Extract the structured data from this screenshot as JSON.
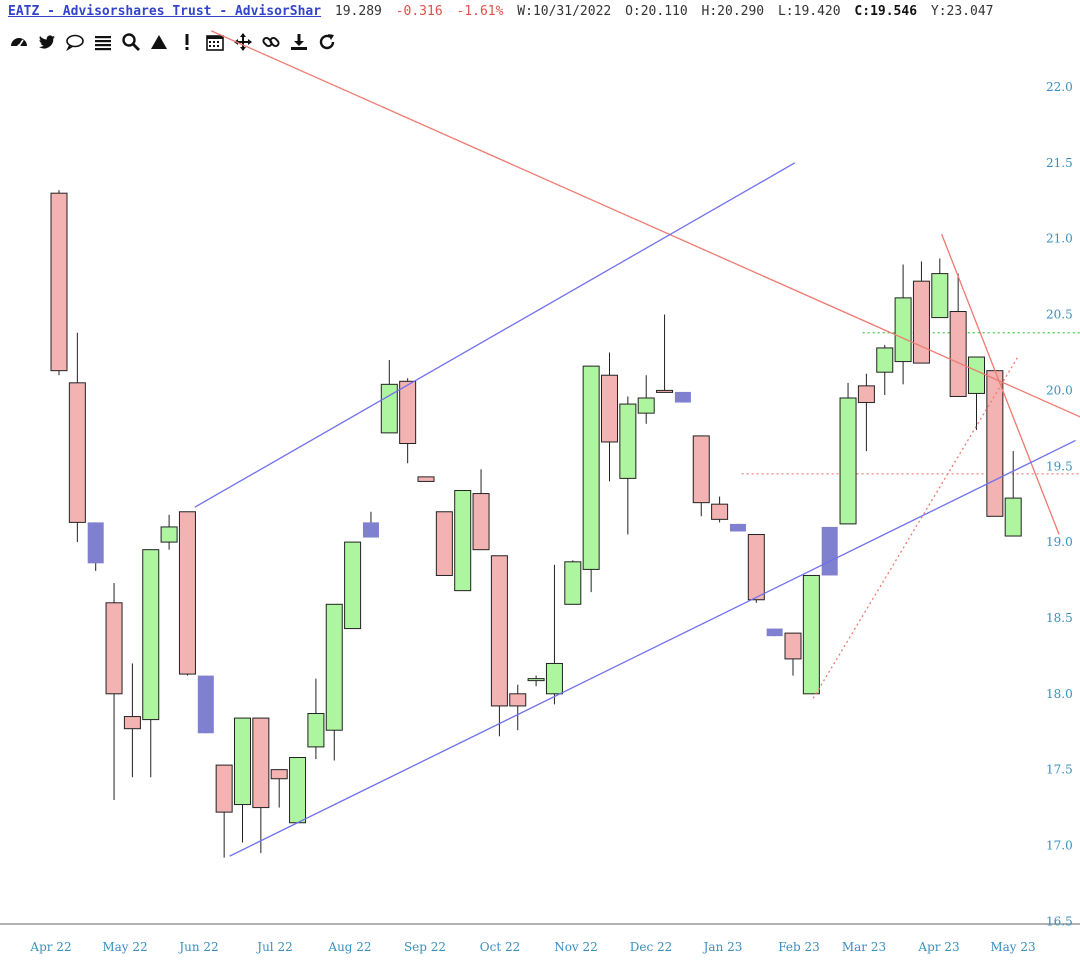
{
  "header": {
    "title": "EATZ - Advisorshares Trust - AdvisorShar",
    "last": "19.289",
    "change": "-0.316",
    "change_pct": "-1.61%",
    "w_label": "W:",
    "w_date": "10/31/2022",
    "o_label": "O:",
    "o_value": "20.110",
    "h_label": "H:",
    "h_value": "20.290",
    "l_label": "L:",
    "l_value": "19.420",
    "c_label": "C:",
    "c_value": "19.546",
    "y_label": "Y:",
    "y_value": "23.047"
  },
  "toolbar": {
    "icons": [
      "dashboard-icon",
      "twitter-icon",
      "comment-icon",
      "list-icon",
      "search-icon",
      "triangle-icon",
      "alert-icon",
      "calendar-icon",
      "move-icon",
      "link-icon",
      "download-icon",
      "refresh-icon"
    ]
  },
  "colors": {
    "up": "#aef5a0",
    "down": "#f3b3b3",
    "neutral": "#8080d0",
    "trend_red": "#ee7a70",
    "trend_blue": "#7070ee",
    "level_green": "#44cc44",
    "axis_text": "#3a8fbf"
  },
  "chart_data": {
    "type": "candlestick",
    "interval": "weekly",
    "ylim": [
      16.3,
      22.2
    ],
    "y_ticks": [
      16.5,
      17.0,
      17.5,
      18.0,
      18.5,
      19.0,
      19.5,
      20.0,
      20.5,
      21.0,
      21.5,
      22.0
    ],
    "x_labels": [
      "Apr 22",
      "May 22",
      "Jun 22",
      "Jul 22",
      "Aug 22",
      "Sep 22",
      "Oct 22",
      "Nov 22",
      "Dec 22",
      "Jan 23",
      "Feb 23",
      "Mar 23",
      "Apr 23",
      "May 23"
    ],
    "candles": [
      {
        "o": 21.3,
        "h": 21.32,
        "l": 20.1,
        "c": 20.13,
        "t": "down"
      },
      {
        "o": 20.05,
        "h": 20.38,
        "l": 19.0,
        "c": 19.13,
        "t": "down"
      },
      {
        "o": 19.13,
        "h": 19.13,
        "l": 18.81,
        "c": 18.86,
        "t": "neutral"
      },
      {
        "o": 18.6,
        "h": 18.73,
        "l": 17.3,
        "c": 18.0,
        "t": "down"
      },
      {
        "o": 17.85,
        "h": 18.2,
        "l": 17.45,
        "c": 17.77,
        "t": "down"
      },
      {
        "o": 17.83,
        "h": 18.95,
        "l": 17.45,
        "c": 18.95,
        "t": "up"
      },
      {
        "o": 19.0,
        "h": 19.18,
        "l": 18.95,
        "c": 19.1,
        "t": "up"
      },
      {
        "o": 19.2,
        "h": 19.2,
        "l": 18.12,
        "c": 18.13,
        "t": "down"
      },
      {
        "o": 18.12,
        "h": 18.12,
        "l": 17.74,
        "c": 17.74,
        "t": "neutral"
      },
      {
        "o": 17.53,
        "h": 17.53,
        "l": 16.92,
        "c": 17.22,
        "t": "down"
      },
      {
        "o": 17.27,
        "h": 17.84,
        "l": 17.02,
        "c": 17.84,
        "t": "up"
      },
      {
        "o": 17.84,
        "h": 17.84,
        "l": 16.95,
        "c": 17.25,
        "t": "down"
      },
      {
        "o": 17.5,
        "h": 17.5,
        "l": 17.25,
        "c": 17.44,
        "t": "down"
      },
      {
        "o": 17.15,
        "h": 17.58,
        "l": 17.15,
        "c": 17.58,
        "t": "up"
      },
      {
        "o": 17.65,
        "h": 18.1,
        "l": 17.57,
        "c": 17.87,
        "t": "up"
      },
      {
        "o": 17.76,
        "h": 18.59,
        "l": 17.56,
        "c": 18.59,
        "t": "up"
      },
      {
        "o": 18.43,
        "h": 19.0,
        "l": 18.43,
        "c": 19.0,
        "t": "up"
      },
      {
        "o": 19.13,
        "h": 19.2,
        "l": 19.03,
        "c": 19.03,
        "t": "neutral"
      },
      {
        "o": 19.72,
        "h": 20.2,
        "l": 19.72,
        "c": 20.04,
        "t": "up"
      },
      {
        "o": 20.06,
        "h": 20.08,
        "l": 19.52,
        "c": 19.65,
        "t": "down"
      },
      {
        "o": 19.43,
        "h": 19.43,
        "l": 19.41,
        "c": 19.4,
        "t": "down"
      },
      {
        "o": 19.2,
        "h": 19.2,
        "l": 18.78,
        "c": 18.78,
        "t": "down"
      },
      {
        "o": 18.68,
        "h": 19.34,
        "l": 18.68,
        "c": 19.34,
        "t": "up"
      },
      {
        "o": 19.32,
        "h": 19.48,
        "l": 18.95,
        "c": 18.95,
        "t": "down"
      },
      {
        "o": 18.91,
        "h": 18.91,
        "l": 17.72,
        "c": 17.92,
        "t": "down"
      },
      {
        "o": 17.92,
        "h": 18.06,
        "l": 17.76,
        "c": 18.0,
        "t": "down"
      },
      {
        "o": 18.1,
        "h": 18.12,
        "l": 18.05,
        "c": 18.1,
        "t": "up"
      },
      {
        "o": 18.0,
        "h": 18.85,
        "l": 17.93,
        "c": 18.2,
        "t": "up"
      },
      {
        "o": 18.59,
        "h": 18.88,
        "l": 18.59,
        "c": 18.87,
        "t": "up"
      },
      {
        "o": 18.82,
        "h": 20.16,
        "l": 18.67,
        "c": 20.16,
        "t": "up"
      },
      {
        "o": 20.1,
        "h": 20.25,
        "l": 19.4,
        "c": 19.66,
        "t": "down"
      },
      {
        "o": 19.42,
        "h": 19.96,
        "l": 19.05,
        "c": 19.91,
        "t": "up"
      },
      {
        "o": 19.85,
        "h": 20.1,
        "l": 19.78,
        "c": 19.95,
        "t": "up"
      },
      {
        "o": 20.0,
        "h": 20.5,
        "l": 20.01,
        "c": 20.0,
        "t": "down"
      },
      {
        "o": 19.99,
        "h": 19.94,
        "l": 19.93,
        "c": 19.92,
        "t": "neutral"
      },
      {
        "o": 19.7,
        "h": 19.7,
        "l": 19.17,
        "c": 19.26,
        "t": "down"
      },
      {
        "o": 19.25,
        "h": 19.3,
        "l": 19.13,
        "c": 19.15,
        "t": "down"
      },
      {
        "o": 19.12,
        "h": 19.12,
        "l": 19.07,
        "c": 19.07,
        "t": "neutral"
      },
      {
        "o": 19.05,
        "h": 19.05,
        "l": 18.6,
        "c": 18.62,
        "t": "down"
      },
      {
        "o": 18.43,
        "h": 18.43,
        "l": 18.38,
        "c": 18.38,
        "t": "neutral"
      },
      {
        "o": 18.4,
        "h": 18.4,
        "l": 18.12,
        "c": 18.23,
        "t": "down"
      },
      {
        "o": 18.0,
        "h": 18.78,
        "l": 18.0,
        "c": 18.78,
        "t": "up"
      },
      {
        "o": 19.1,
        "h": 19.1,
        "l": 18.78,
        "c": 18.78,
        "t": "neutral"
      },
      {
        "o": 19.12,
        "h": 20.05,
        "l": 19.12,
        "c": 19.95,
        "t": "up"
      },
      {
        "o": 20.03,
        "h": 20.11,
        "l": 19.6,
        "c": 19.92,
        "t": "down"
      },
      {
        "o": 20.12,
        "h": 20.3,
        "l": 19.97,
        "c": 20.28,
        "t": "up"
      },
      {
        "o": 20.19,
        "h": 20.83,
        "l": 20.04,
        "c": 20.61,
        "t": "up"
      },
      {
        "o": 20.72,
        "h": 20.85,
        "l": 20.22,
        "c": 20.18,
        "t": "down"
      },
      {
        "o": 20.48,
        "h": 20.87,
        "l": 20.48,
        "c": 20.77,
        "t": "up"
      },
      {
        "o": 20.52,
        "h": 20.77,
        "l": 20.0,
        "c": 19.96,
        "t": "down"
      },
      {
        "o": 19.98,
        "h": 20.22,
        "l": 19.74,
        "c": 20.22,
        "t": "up"
      },
      {
        "o": 20.13,
        "h": 20.13,
        "l": 19.17,
        "c": 19.17,
        "t": "down"
      },
      {
        "o": 19.04,
        "h": 19.6,
        "l": 19.04,
        "c": 19.29,
        "t": "up"
      }
    ],
    "trendlines": [
      {
        "name": "red-downtrend",
        "style": "solid",
        "color": "red",
        "from": {
          "week": 8.3,
          "price": 22.37
        },
        "to": {
          "week": 64.5,
          "price": 19.35
        }
      },
      {
        "name": "red-short-downtrend",
        "style": "solid",
        "color": "red",
        "from": {
          "week": 48.1,
          "price": 21.03
        },
        "to": {
          "week": 54.5,
          "price": 19.05
        }
      },
      {
        "name": "blue-channel-upper",
        "style": "solid",
        "color": "blue",
        "from": {
          "week": 7.4,
          "price": 19.23
        },
        "to": {
          "week": 40.1,
          "price": 21.5
        }
      },
      {
        "name": "blue-channel-lower",
        "style": "solid",
        "color": "blue",
        "from": {
          "week": 9.3,
          "price": 16.93
        },
        "to": {
          "week": 55.4,
          "price": 19.67
        }
      },
      {
        "name": "red-dotted-uptrend",
        "style": "dotted",
        "color": "red",
        "from": {
          "week": 41.1,
          "price": 17.97
        },
        "to": {
          "week": 52.3,
          "price": 20.23
        }
      }
    ],
    "levels": [
      {
        "name": "green-resistance",
        "price": 20.38,
        "from_week": 43.8,
        "color": "green"
      },
      {
        "name": "red-support",
        "price": 19.45,
        "from_week": 37.2,
        "color": "red"
      }
    ],
    "y_unit": "USD",
    "grid": false
  }
}
